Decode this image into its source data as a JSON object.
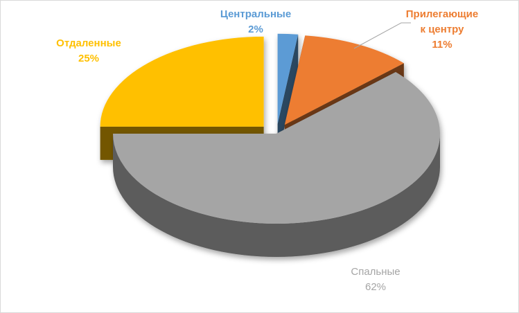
{
  "chart_data": {
    "type": "pie",
    "style": "3d-exploded",
    "legend": "none",
    "slices": [
      {
        "name": "Центральные",
        "name_lines": [
          "Центральные"
        ],
        "value": 2,
        "value_label": "2%",
        "color": "#5b9bd5",
        "label_color": "#5b9bd5"
      },
      {
        "name": "Прилегающие к центру",
        "name_lines": [
          "Прилегающие",
          "к центру"
        ],
        "value": 11,
        "value_label": "11%",
        "color": "#ed7d31",
        "label_color": "#ed7d31"
      },
      {
        "name": "Спальные",
        "name_lines": [
          "Спальные"
        ],
        "value": 62,
        "value_label": "62%",
        "color": "#a5a5a5",
        "label_color": "#a5a5a5"
      },
      {
        "name": "Отдаленные",
        "name_lines": [
          "Отдаленные"
        ],
        "value": 25,
        "value_label": "25%",
        "color": "#ffc000",
        "label_color": "#ffc000"
      }
    ]
  }
}
